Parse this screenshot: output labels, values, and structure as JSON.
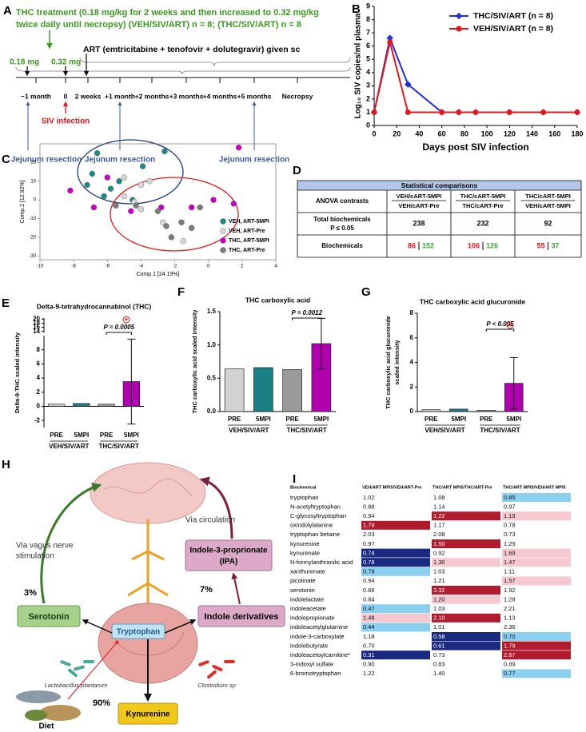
{
  "panel_labels": [
    "A",
    "B",
    "C",
    "D",
    "E",
    "F",
    "G",
    "H",
    "I"
  ],
  "timeline": {
    "treatment": [
      "THC treatment (0.18 mg/kg for 2 weeks and then increased to 0.32 mg/kg",
      "twice daily until necropsy) (VEH/SIV/ART) n = 8; (THC/SIV/ART) n = 8"
    ],
    "art": "ART (emtricitabine + tenofovir + dolutegravir) given sc",
    "doses": [
      "0.18 mg",
      "0.32 mg"
    ],
    "timepoints": [
      "−1 month",
      "0",
      "2 weeks",
      "+1 month",
      "+2 months",
      "+3 months",
      "+4 months",
      "+5 months",
      "Necropsy"
    ],
    "infection": "SIV infection",
    "resections": [
      "Jejunum resection",
      "Jejunum resection",
      "Jejunum resection"
    ]
  },
  "chart_data": [
    {
      "type": "line",
      "ylabel": "Log₁₀ SIV copies/ml plasma",
      "xlabel": "Days post SIV infection",
      "x": [
        0,
        14,
        30,
        60,
        75,
        90,
        120,
        150,
        180
      ],
      "series": [
        {
          "name": "THC/SIV/ART (n = 8)",
          "color": "#1f2fe0",
          "marker": "diamond",
          "values": [
            1,
            6.6,
            3.1,
            1,
            1,
            1,
            1,
            1,
            1
          ]
        },
        {
          "name": "VEH/SIV/ART (n = 8)",
          "color": "#e8141b",
          "marker": "circle",
          "values": [
            1,
            6.3,
            1,
            1,
            1,
            1,
            1,
            1,
            1
          ]
        }
      ],
      "xlim": [
        0,
        180
      ],
      "xticks": [
        0,
        20,
        40,
        60,
        80,
        100,
        120,
        140,
        160,
        180
      ],
      "ylim": [
        0,
        9
      ],
      "yticks": [
        0,
        1,
        2,
        3,
        4,
        5,
        6,
        7,
        8,
        9
      ],
      "legend": "upper right"
    },
    {
      "type": "scatter",
      "xlabel": "Comp.1 [24.19%]",
      "ylabel": "Comp.2 [12.92%]",
      "series": [
        {
          "name": "VEH, ART-5MPI",
          "color": "#1b8b86",
          "x": [
            -6.6,
            -2.6,
            -3.9,
            -6.9,
            -7.2,
            -5.3,
            -5.8,
            -6.2,
            -4.5
          ],
          "values": [
            25,
            26,
            18,
            14,
            8,
            10,
            6,
            2,
            0
          ]
        },
        {
          "name": "VEH, ART-Pre",
          "color": "#d6d6d6",
          "x": [
            -5,
            -4,
            -3.5,
            -4.4,
            -5,
            -2.7,
            -1.5,
            -4
          ],
          "values": [
            12,
            8,
            10,
            -1,
            2,
            -12,
            -22,
            -5
          ]
        },
        {
          "name": "THC, ART-5MPI",
          "color": "#c800c8",
          "x": [
            -8.2,
            -6,
            1.8,
            -4.6,
            -1,
            1.5,
            -2.8,
            0.3,
            -6.8
          ],
          "values": [
            5,
            12,
            28,
            -6,
            -4,
            -2,
            -4,
            0,
            -4
          ]
        },
        {
          "name": "THC, ART-Pre",
          "color": "#7a7a7a",
          "x": [
            -4.3,
            -3,
            -2.5,
            -1.6,
            -0.5,
            -1,
            -2.2,
            -5.5
          ],
          "values": [
            -3,
            -6,
            -14,
            -12,
            -4,
            -15,
            -20,
            -3
          ]
        }
      ],
      "xlim": [
        -10,
        4
      ],
      "xticks": [
        -10,
        -8,
        -6,
        -4,
        -2,
        0,
        2,
        4
      ],
      "ylim": [
        -32,
        30
      ],
      "yticks": [
        -30,
        -20,
        -10,
        0,
        10,
        20
      ],
      "legend": "lower right"
    },
    {
      "type": "bar",
      "title": "Delta-9-tetrahydrocannabinol (THC)",
      "ylabel": "Delta-9-THC scaled intensity",
      "categories": [
        "PRE",
        "5MPI",
        "PRE",
        "5MPI"
      ],
      "groups": [
        "VEH/SIV/ART",
        "THC/SIV/ART"
      ],
      "values": [
        0.3,
        0.4,
        0.3,
        3.5
      ],
      "errors": [
        null,
        null,
        null,
        6
      ],
      "colors": [
        "#d3d3d3",
        "#1b7f86",
        "#9a9a9a",
        "#b000b0"
      ],
      "ylim": [
        -3,
        10
      ],
      "yticks": [
        -2,
        0,
        2,
        4,
        6,
        8
      ],
      "ylim_upper": [
        13.5,
        20.5
      ],
      "yticks_upper": [
        14,
        16,
        18,
        20
      ],
      "annotation": "P = 0.0005"
    },
    {
      "type": "bar",
      "title": "THC carboxylic acid",
      "ylabel": "THC carboxylic acid scaled intensity",
      "categories": [
        "PRE",
        "5MPI",
        "PRE",
        "5MPI"
      ],
      "groups": [
        "VEH/SIV/ART",
        "THC/SIV/ART"
      ],
      "values": [
        0.64,
        0.66,
        0.63,
        1.02
      ],
      "errors": [
        null,
        null,
        null,
        0.38
      ],
      "colors": [
        "#d3d3d3",
        "#1b7f86",
        "#9a9a9a",
        "#b000b0"
      ],
      "ylim": [
        0,
        1.5
      ],
      "yticks": [
        {
          "value": 0,
          "label": "0.0"
        },
        {
          "value": 0.5,
          "label": "0.5"
        },
        {
          "value": 1,
          "label": "1.0"
        },
        {
          "value": 1.5,
          "label": "1.5"
        }
      ],
      "annotation": "P = 0.0012"
    },
    {
      "type": "bar",
      "title": "THC carboxylic acid glucuronide",
      "ylabel": [
        "THC carboxylic acid glucuronide",
        "scaled intensity"
      ],
      "categories": [
        "PRE",
        "5MPI",
        "PRE",
        "5MPI"
      ],
      "groups": [
        "VEH/SIV/ART",
        "THC/SIV/ART"
      ],
      "values": [
        0.15,
        0.2,
        0.1,
        2.3
      ],
      "errors": [
        null,
        null,
        null,
        2.1
      ],
      "colors": [
        "#d3d3d3",
        "#1b7f86",
        "#9a9a9a",
        "#b000b0"
      ],
      "ylim": [
        0,
        8
      ],
      "yticks": [
        0,
        2,
        4,
        6,
        8
      ],
      "annotation": "P < 0.005"
    }
  ],
  "table_d": {
    "title": "Statistical comparisons",
    "contrasts_label": "ANOVA contrasts",
    "contrasts": [
      [
        "VEH/cART-5MPI",
        "VEH/cART-Pre"
      ],
      [
        "THC/cART-5MPI",
        "THC/cART-Pre"
      ],
      [
        "THC/cART-5MPI",
        "VEH/cART-5MPI"
      ]
    ],
    "total_label": [
      "Total biochemicals",
      "P ≤ 0.05"
    ],
    "total": [
      238,
      232,
      92
    ],
    "biochem_label": "Biochemicals",
    "up": [
      86,
      106,
      55
    ],
    "down": [
      152,
      126,
      37
    ],
    "up_color": "#e8141b",
    "down_color": "#3aaa35"
  },
  "diagram_h": {
    "vagus": [
      "Via vagus nerve",
      "stimulation"
    ],
    "circulation": "Via circulation",
    "ipa": [
      "Indole-3-proprionate",
      "(IPA)"
    ],
    "ipa_pct": "7%",
    "indole": "Indole derivatives",
    "serotonin_pct": "3%",
    "serotonin": "Serotonin",
    "tryptophan": "Tryptophan",
    "lacto": "Lactobacillus plantarum",
    "clost": "Clostridium sp.",
    "diet": "Diet",
    "kyn_pct": "90%",
    "kynurenine": "Kynurenine"
  },
  "heatmap_i": {
    "columns": [
      "Biochemical",
      "VEH/ART MPI5/VEH/ART-Pre",
      "THC/ART MPI5/THC/ART-Pre",
      "THC/ART MPI5/VEH/ART MPI5"
    ],
    "rows": [
      {
        "name": "tryptophan",
        "values": [
          "1.02",
          "1.08",
          "0.85"
        ],
        "shade": [
          null,
          null,
          "#8bd0ee"
        ]
      },
      {
        "name": "N-acetyltryptophan",
        "values": [
          "0.88",
          "1.14",
          "0.97"
        ],
        "shade": [
          null,
          null,
          null
        ]
      },
      {
        "name": "C-glycosyltryptophan",
        "values": [
          "0.94",
          "1.22",
          "1.19"
        ],
        "shade": [
          null,
          "#b01c2e",
          "#f6c9d1"
        ]
      },
      {
        "name": "oxindolylalanine",
        "values": [
          "1.79",
          "1.17",
          "0.78"
        ],
        "shade": [
          "#b01c2e",
          null,
          null
        ]
      },
      {
        "name": "tryptophan betaine",
        "values": [
          "2.03",
          "2.08",
          "0.73"
        ],
        "shade": [
          null,
          null,
          null
        ]
      },
      {
        "name": "kynurenine",
        "values": [
          "0.97",
          "1.50",
          "1.29"
        ],
        "shade": [
          null,
          "#b01c2e",
          null
        ]
      },
      {
        "name": "kynurenate",
        "values": [
          "0.74",
          "0.92",
          "1.69"
        ],
        "shade": [
          "#1a2a80",
          null,
          "#f6c9d1"
        ]
      },
      {
        "name": "N-formylanthranilic acid",
        "values": [
          "0.78",
          "1.30",
          "1.47"
        ],
        "shade": [
          "#1a2a80",
          "#f6c9d1",
          "#f6c9d1"
        ]
      },
      {
        "name": "xanthurenate",
        "values": [
          "0.79",
          "1.03",
          "1.11"
        ],
        "shade": [
          "#8bd0ee",
          null,
          null
        ]
      },
      {
        "name": "picolinate",
        "values": [
          "0.94",
          "1.21",
          "1.57"
        ],
        "shade": [
          null,
          null,
          "#f6c9d1"
        ]
      },
      {
        "name": "serotonin",
        "values": [
          "0.66",
          "3.32",
          "1.92"
        ],
        "shade": [
          null,
          "#b01c2e",
          null
        ]
      },
      {
        "name": "indolelactate",
        "values": [
          "0.84",
          "1.20",
          "1.28"
        ],
        "shade": [
          null,
          "#f6c9d1",
          null
        ]
      },
      {
        "name": "indoleacetate",
        "values": [
          "0.47",
          "1.03",
          "2.21"
        ],
        "shade": [
          "#8bd0ee",
          null,
          null
        ]
      },
      {
        "name": "indolepropionate",
        "values": [
          "1.48",
          "2.10",
          "1.13"
        ],
        "shade": [
          "#f6c9d1",
          "#b01c2e",
          null
        ]
      },
      {
        "name": "indoleacetylglutamine",
        "values": [
          "0.44",
          "1.01",
          "2.36"
        ],
        "shade": [
          "#8bd0ee",
          null,
          null
        ]
      },
      {
        "name": "indole-3-carboxylate",
        "values": [
          "1.18",
          "0.58",
          "0.70"
        ],
        "shade": [
          null,
          "#1a2a80",
          "#8bd0ee"
        ]
      },
      {
        "name": "indolebutyrate",
        "values": [
          "0.70",
          "0.61",
          "1.79"
        ],
        "shade": [
          null,
          "#1a2a80",
          "#b01c2e"
        ]
      },
      {
        "name": "indoleacetoylcarnitine*",
        "values": [
          "0.31",
          "0.73",
          "2.87"
        ],
        "shade": [
          "#1a2a80",
          null,
          "#b01c2e"
        ]
      },
      {
        "name": "3-indoxyl sulfate",
        "values": [
          "0.90",
          "0.83",
          "0.89"
        ],
        "shade": [
          null,
          null,
          null
        ]
      },
      {
        "name": "6-bromotryptophan",
        "values": [
          "1.22",
          "1.40",
          "0.77"
        ],
        "shade": [
          null,
          null,
          "#8bd0ee"
        ]
      }
    ]
  }
}
